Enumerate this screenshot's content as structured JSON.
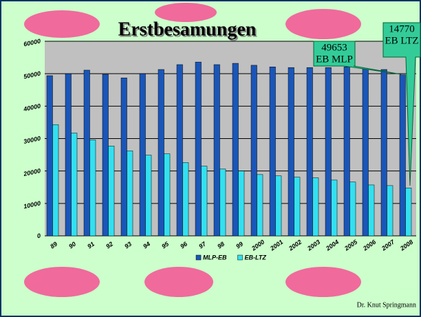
{
  "chart_data": {
    "type": "bar",
    "title": "Erstbesamungen",
    "categories": [
      "89",
      "90",
      "91",
      "92",
      "93",
      "94",
      "95",
      "96",
      "97",
      "98",
      "99",
      "2000",
      "2001",
      "2002",
      "2003",
      "2004",
      "2005",
      "2006",
      "2007",
      "2008"
    ],
    "series": [
      {
        "name": "MLP-EB",
        "color": "#1a56b8",
        "values": [
          49400,
          50000,
          51100,
          49800,
          48700,
          50000,
          51300,
          52800,
          53600,
          52800,
          53200,
          52600,
          52100,
          51900,
          51900,
          51900,
          52100,
          51500,
          51300,
          49653
        ]
      },
      {
        "name": "EB-LTZ",
        "color": "#33e0f0",
        "values": [
          34300,
          31700,
          29600,
          27700,
          26200,
          24900,
          25300,
          22600,
          21500,
          20600,
          20000,
          18900,
          18500,
          18100,
          17900,
          17200,
          16600,
          15700,
          15500,
          14770
        ]
      }
    ],
    "ylim": [
      0,
      60000
    ],
    "yticks": [
      0,
      10000,
      20000,
      30000,
      40000,
      50000,
      60000
    ],
    "grid": true,
    "annotations": [
      {
        "lines": [
          "49653",
          "EB MLP"
        ]
      },
      {
        "lines": [
          "14770",
          "EB LTZ"
        ]
      }
    ],
    "footer": "Dr. Knut Springmann"
  }
}
